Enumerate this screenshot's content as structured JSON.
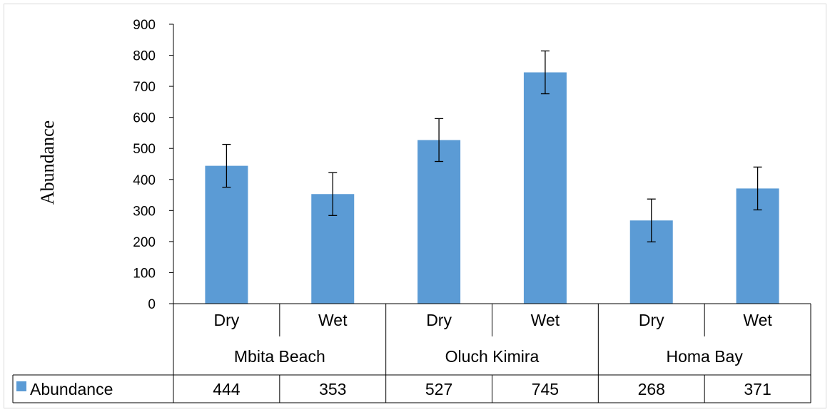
{
  "chart_data": {
    "type": "bar",
    "title": "",
    "xlabel": "",
    "ylabel": "Abundance",
    "ylim": [
      0,
      900
    ],
    "yticks": [
      0,
      100,
      200,
      300,
      400,
      500,
      600,
      700,
      800,
      900
    ],
    "grid": false,
    "legend_position": "data-table",
    "groups": [
      {
        "name": "Mbita Beach",
        "categories": [
          "Dry",
          "Wet"
        ]
      },
      {
        "name": "Oluch Kimira",
        "categories": [
          "Dry",
          "Wet"
        ]
      },
      {
        "name": "Homa Bay",
        "categories": [
          "Dry",
          "Wet"
        ]
      }
    ],
    "categories": [
      "Dry",
      "Wet",
      "Dry",
      "Wet",
      "Dry",
      "Wet"
    ],
    "series": [
      {
        "name": "Abundance",
        "color": "#5b9bd5",
        "values": [
          444,
          353,
          527,
          745,
          268,
          371
        ],
        "error": [
          69,
          69,
          69,
          69,
          69,
          69
        ]
      }
    ],
    "data_table": {
      "legend_label": "Abundance",
      "values": [
        "444",
        "353",
        "527",
        "745",
        "268",
        "371"
      ]
    }
  }
}
